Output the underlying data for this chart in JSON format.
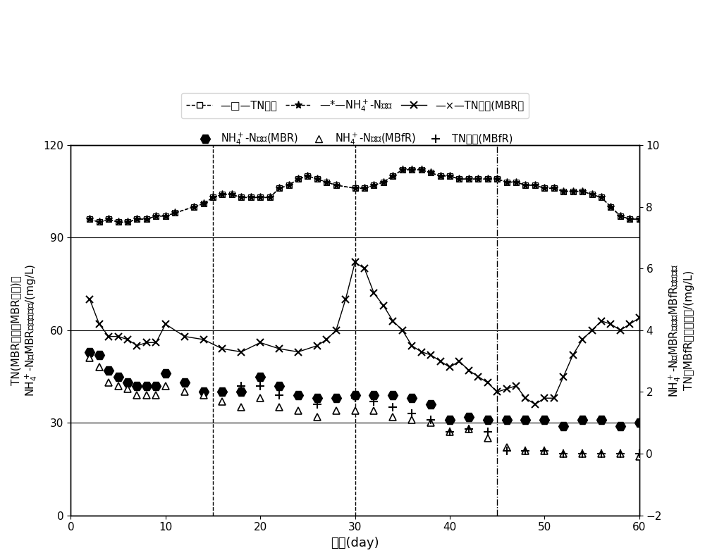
{
  "xlabel": "天数(day)",
  "ylabel_left": "TN(MBR进水、MBR出水)、\nNH$_4^+$-N（MBR进水）浓度/(mg/L)",
  "ylabel_right": "NH$_4^+$-N（MBR出水、MBfR出水）、\nTN（MBfR出水）浓度/(mg/L)",
  "xlim": [
    0,
    60
  ],
  "ylim_left": [
    0,
    120
  ],
  "ylim_right": [
    -2,
    10
  ],
  "xticks": [
    0,
    10,
    20,
    30,
    40,
    50,
    60
  ],
  "yticks_left": [
    0,
    30,
    60,
    90,
    120
  ],
  "yticks_right": [
    -2,
    0,
    2,
    4,
    6,
    8,
    10
  ],
  "TN_inflow_x": [
    2,
    3,
    4,
    5,
    6,
    7,
    8,
    9,
    10,
    11,
    13,
    14,
    15,
    16,
    17,
    18,
    19,
    20,
    21,
    22,
    23,
    24,
    25,
    26,
    27,
    28,
    30,
    31,
    32,
    33,
    34,
    35,
    36,
    37,
    38,
    39,
    40,
    41,
    42,
    43,
    44,
    45,
    46,
    47,
    48,
    49,
    50,
    51,
    52,
    53,
    54,
    55,
    56,
    57,
    58,
    59,
    60
  ],
  "TN_inflow_y": [
    96,
    95,
    96,
    95,
    95,
    96,
    96,
    97,
    97,
    98,
    100,
    101,
    103,
    104,
    104,
    103,
    103,
    103,
    103,
    106,
    107,
    109,
    110,
    109,
    108,
    107,
    106,
    106,
    107,
    108,
    110,
    112,
    112,
    112,
    111,
    110,
    110,
    109,
    109,
    109,
    109,
    109,
    108,
    108,
    107,
    107,
    106,
    106,
    105,
    105,
    105,
    104,
    103,
    100,
    97,
    96,
    96
  ],
  "NH4_inflow_x": [
    2,
    3,
    4,
    5,
    6,
    7,
    8,
    9,
    10,
    11,
    13,
    14,
    15,
    16,
    17,
    18,
    19,
    20,
    21,
    22,
    23,
    24,
    25,
    26,
    27,
    28,
    30,
    31,
    32,
    33,
    34,
    35,
    36,
    37,
    38,
    39,
    40,
    41,
    42,
    43,
    44,
    45,
    46,
    47,
    48,
    49,
    50,
    51,
    52,
    53,
    54,
    55,
    56,
    57,
    58,
    59,
    60
  ],
  "NH4_inflow_y": [
    96,
    95,
    96,
    95,
    95,
    96,
    96,
    97,
    97,
    98,
    100,
    101,
    103,
    104,
    104,
    103,
    103,
    103,
    103,
    106,
    107,
    109,
    110,
    109,
    108,
    107,
    106,
    106,
    107,
    108,
    110,
    112,
    112,
    112,
    111,
    110,
    110,
    109,
    109,
    109,
    109,
    109,
    108,
    108,
    107,
    107,
    106,
    106,
    105,
    105,
    105,
    104,
    103,
    100,
    97,
    96,
    96
  ],
  "TN_MBR_out_x": [
    2,
    3,
    4,
    5,
    6,
    7,
    8,
    9,
    10,
    12,
    14,
    16,
    18,
    20,
    22,
    24,
    26,
    27,
    28,
    29,
    30,
    31,
    32,
    33,
    34,
    35,
    36,
    37,
    38,
    39,
    40,
    41,
    42,
    43,
    44,
    45,
    46,
    47,
    48,
    49,
    50,
    51,
    52,
    53,
    54,
    55,
    56,
    57,
    58,
    59,
    60
  ],
  "TN_MBR_out_y": [
    70,
    62,
    58,
    58,
    57,
    55,
    56,
    56,
    62,
    58,
    57,
    54,
    53,
    56,
    54,
    53,
    55,
    57,
    60,
    70,
    82,
    80,
    72,
    68,
    63,
    60,
    55,
    53,
    52,
    50,
    48,
    50,
    47,
    45,
    43,
    40,
    41,
    42,
    38,
    36,
    38,
    38,
    45,
    52,
    57,
    60,
    63,
    62,
    60,
    62,
    64
  ],
  "NH4_MBR_out_x": [
    2,
    3,
    4,
    5,
    6,
    7,
    8,
    9,
    10,
    12,
    14,
    16,
    18,
    20,
    22,
    24,
    26,
    28,
    30,
    32,
    34,
    36,
    38,
    40,
    42,
    44,
    46,
    48,
    50,
    52,
    54,
    56,
    58,
    60
  ],
  "NH4_MBR_out_r": [
    3.3,
    3.2,
    2.7,
    2.5,
    2.3,
    2.2,
    2.2,
    2.2,
    2.6,
    2.3,
    2.0,
    2.0,
    2.0,
    2.5,
    2.2,
    1.9,
    1.8,
    1.8,
    1.9,
    1.9,
    1.9,
    1.8,
    1.6,
    1.1,
    1.2,
    1.1,
    1.1,
    1.1,
    1.1,
    0.9,
    1.1,
    1.1,
    0.9,
    1.0
  ],
  "NH4_MBfR_out_x": [
    2,
    3,
    4,
    5,
    6,
    7,
    8,
    9,
    10,
    12,
    14,
    16,
    18,
    20,
    22,
    24,
    26,
    28,
    30,
    32,
    34,
    36,
    38,
    40,
    42,
    44,
    46,
    48,
    50,
    52,
    54,
    56,
    58,
    60
  ],
  "NH4_MBfR_out_r": [
    3.1,
    2.8,
    2.3,
    2.2,
    2.1,
    1.9,
    1.9,
    1.9,
    2.2,
    2.0,
    1.9,
    1.7,
    1.5,
    1.8,
    1.5,
    1.4,
    1.2,
    1.4,
    1.4,
    1.4,
    1.2,
    1.1,
    1.0,
    0.7,
    0.8,
    0.5,
    0.2,
    0.1,
    0.1,
    0.0,
    0.0,
    0.0,
    0.0,
    -0.1
  ],
  "TN_MBfR_out_x": [
    18,
    20,
    22,
    24,
    26,
    28,
    30,
    32,
    34,
    36,
    38,
    40,
    42,
    44,
    46,
    48,
    50,
    52,
    54,
    56,
    58,
    60
  ],
  "TN_MBfR_out_r": [
    2.2,
    2.2,
    1.9,
    1.9,
    1.6,
    1.8,
    1.8,
    1.7,
    1.5,
    1.3,
    1.1,
    0.7,
    0.8,
    0.7,
    0.1,
    0.1,
    0.1,
    0.0,
    0.0,
    0.0,
    0.0,
    0.0
  ],
  "leg1_labels": [
    "—□—TN进水",
    "—*—NH$_4^+$-N进水",
    "—×—TN出水(MBR）"
  ],
  "leg2_labels": [
    "NH$_4^+$-N出水(MBR)",
    "NH$_4^+$-N出水(MBfR)",
    "TN出水(MBfR)"
  ]
}
